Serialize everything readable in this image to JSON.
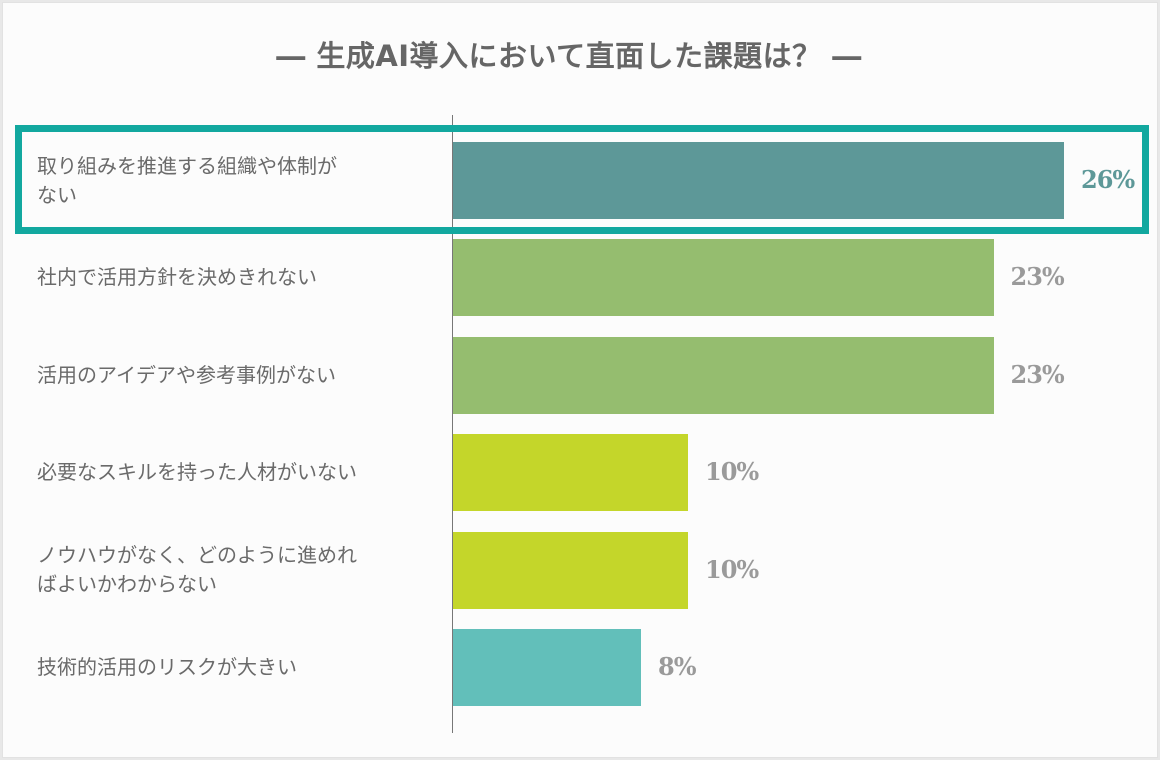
{
  "chart_data": {
    "type": "bar",
    "orientation": "horizontal",
    "title": "― 生成AI導入において直面した課題は？ ―",
    "xlabel": "",
    "ylabel": "",
    "unit": "%",
    "xlim": [
      0,
      26
    ],
    "categories": [
      "取り組みを推進する組織や体制がない",
      "社内で活用方針を決めきれない",
      "活用のアイデアや参考事例がない",
      "必要なスキルを持った人材がいない",
      "ノウハウがなく、どのように進めればよいかわからない",
      "技術的活用のリスクが大きい"
    ],
    "label_lines": [
      [
        "取り組みを推進する組織や体制が",
        "ない"
      ],
      [
        "社内で活用方針を決めきれない"
      ],
      [
        "活用のアイデアや参考事例がない"
      ],
      [
        "必要なスキルを持った人材がいない"
      ],
      [
        "ノウハウがなく、どのように進めれ",
        "ばよいかわからない"
      ],
      [
        "技術的活用のリスクが大きい"
      ]
    ],
    "values": [
      26,
      23,
      23,
      10,
      10,
      8
    ],
    "value_labels": [
      "26%",
      "23%",
      "23%",
      "10%",
      "10%",
      "8%"
    ],
    "bar_colors": [
      "#5d9898",
      "#95bd6f",
      "#95bd6f",
      "#c4d62a",
      "#c4d62a",
      "#62bfba"
    ],
    "value_label_colors": [
      "#5d9898",
      "#9a9a9a",
      "#9a9a9a",
      "#9a9a9a",
      "#9a9a9a",
      "#9a9a9a"
    ],
    "highlighted_index": 0,
    "highlight_color": "#12a89f",
    "grid": false,
    "legend": "none"
  }
}
